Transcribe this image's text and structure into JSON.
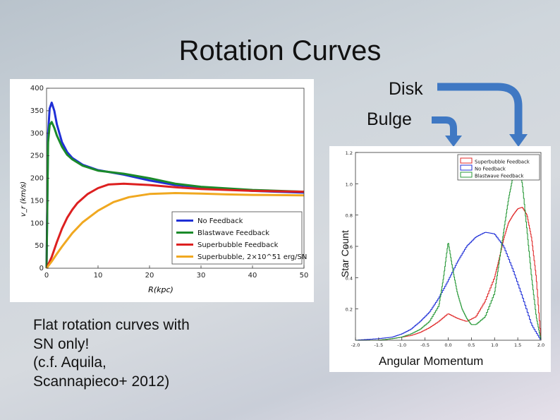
{
  "slide": {
    "title": "Rotation Curves",
    "label_disk": "Disk",
    "label_bulge": "Bulge",
    "body_text": "Flat rotation curves with\nSN only!\n(c.f. Aquila,\nScannapieco+ 2012)",
    "arrow_color": "#3f78c3"
  },
  "chart_data": [
    {
      "type": "line",
      "xlabel": "R(kpc)",
      "ylabel": "v_r (km/s)",
      "xlim": [
        0,
        50
      ],
      "ylim": [
        0,
        400
      ],
      "xticks": [
        "0",
        "10",
        "20",
        "30",
        "40",
        "50"
      ],
      "yticks": [
        "0",
        "50",
        "100",
        "150",
        "200",
        "250",
        "300",
        "350",
        "400"
      ],
      "legend_position": "lower-right",
      "series": [
        {
          "name": "No Feedback",
          "color": "#1f2fd6",
          "x": [
            0,
            0.3,
            0.6,
            1,
            1.5,
            2,
            3,
            4,
            5,
            7,
            10,
            15,
            20,
            25,
            30,
            40,
            50
          ],
          "values": [
            0,
            300,
            355,
            368,
            350,
            320,
            280,
            258,
            245,
            230,
            218,
            208,
            195,
            185,
            180,
            172,
            168
          ]
        },
        {
          "name": "Blastwave Feedback",
          "color": "#1a8a2a",
          "x": [
            0,
            0.3,
            0.6,
            1,
            1.5,
            2,
            3,
            4,
            5,
            7,
            10,
            15,
            20,
            25,
            30,
            40,
            50
          ],
          "values": [
            0,
            280,
            318,
            325,
            312,
            295,
            270,
            252,
            242,
            228,
            217,
            210,
            200,
            188,
            181,
            174,
            170
          ]
        },
        {
          "name": "Superbubble Feedback",
          "color": "#dd2020",
          "x": [
            0,
            1,
            2,
            3,
            4,
            5,
            6,
            8,
            10,
            12,
            15,
            20,
            25,
            30,
            40,
            50
          ],
          "values": [
            0,
            25,
            58,
            88,
            112,
            130,
            145,
            165,
            178,
            186,
            188,
            185,
            180,
            176,
            172,
            170
          ]
        },
        {
          "name": "Superbubble, 2×10^51 erg/SN",
          "color": "#f0a820",
          "x": [
            0,
            1,
            2,
            3,
            5,
            7,
            10,
            13,
            16,
            20,
            25,
            30,
            35,
            40,
            50
          ],
          "values": [
            0,
            15,
            32,
            48,
            78,
            102,
            128,
            147,
            158,
            165,
            167,
            166,
            164,
            163,
            162
          ]
        }
      ]
    },
    {
      "type": "line",
      "xlabel": "Angular Momentum",
      "ylabel": "Star Count",
      "xlim": [
        -2.0,
        2.0
      ],
      "ylim": [
        0,
        1.2
      ],
      "xticks": [
        "-2.0",
        "-1.5",
        "-1.0",
        "-0.5",
        "0.0",
        "0.5",
        "1.0",
        "1.5",
        "2.0"
      ],
      "yticks": [
        "0.2",
        "0.4",
        "0.6",
        "0.8",
        "1.0",
        "1.2"
      ],
      "legend_position": "top-right",
      "series": [
        {
          "name": "Superbubble Feedback",
          "color": "#e02a2a",
          "x": [
            -2,
            -1.5,
            -1.2,
            -1,
            -0.8,
            -0.6,
            -0.4,
            -0.2,
            0,
            0.2,
            0.4,
            0.6,
            0.8,
            1,
            1.1,
            1.2,
            1.3,
            1.4,
            1.5,
            1.6,
            1.7,
            1.8,
            1.9,
            2
          ],
          "values": [
            0,
            0,
            0.01,
            0.02,
            0.03,
            0.05,
            0.08,
            0.12,
            0.17,
            0.14,
            0.12,
            0.15,
            0.25,
            0.4,
            0.52,
            0.65,
            0.75,
            0.8,
            0.84,
            0.85,
            0.8,
            0.65,
            0.4,
            0
          ]
        },
        {
          "name": "No Feedback",
          "color": "#2232d8",
          "x": [
            -2,
            -1.5,
            -1.2,
            -1,
            -0.8,
            -0.6,
            -0.4,
            -0.2,
            0,
            0.2,
            0.4,
            0.6,
            0.8,
            1,
            1.2,
            1.4,
            1.6,
            1.8,
            2
          ],
          "values": [
            0,
            0.01,
            0.02,
            0.04,
            0.07,
            0.12,
            0.18,
            0.27,
            0.38,
            0.5,
            0.6,
            0.66,
            0.69,
            0.68,
            0.6,
            0.45,
            0.28,
            0.1,
            0
          ]
        },
        {
          "name": "Blastwave Feedback",
          "color": "#2a9a3a",
          "x": [
            -2,
            -1.5,
            -1.2,
            -1,
            -0.8,
            -0.6,
            -0.4,
            -0.2,
            -0.1,
            0,
            0.1,
            0.2,
            0.3,
            0.4,
            0.5,
            0.6,
            0.8,
            1,
            1.1,
            1.2,
            1.3,
            1.4,
            1.5,
            1.6,
            1.7,
            1.8,
            1.9,
            2
          ],
          "values": [
            0,
            0,
            0.01,
            0.02,
            0.04,
            0.07,
            0.12,
            0.22,
            0.4,
            0.63,
            0.45,
            0.3,
            0.2,
            0.14,
            0.1,
            0.1,
            0.15,
            0.3,
            0.5,
            0.7,
            0.9,
            1.05,
            1.12,
            1.0,
            0.7,
            0.4,
            0.15,
            0
          ]
        }
      ]
    }
  ]
}
